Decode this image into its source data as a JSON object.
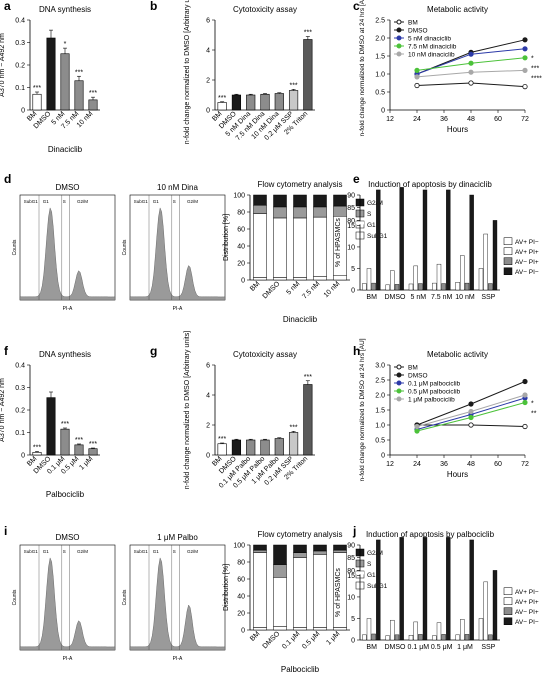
{
  "figure": {
    "colors": {
      "black": "#1a1a1a",
      "dgray": "#5a5a5a",
      "mgray": "#8c8c8c",
      "lgray": "#c8c8c8",
      "white": "#ffffff",
      "blue": "#2c3aa8",
      "green": "#4cc23a",
      "silver": "#a8a8a8"
    }
  },
  "chart_data": [
    {
      "panel": "a",
      "type": "bar",
      "title": "DNA synthesis",
      "ylabel": "A370 nm − A492 nm",
      "xlabel": "Dinaciclib",
      "categories": [
        "BM",
        "DMSO",
        "5 nM",
        "7.5 nM",
        "10 nM"
      ],
      "values": [
        0.07,
        0.32,
        0.25,
        0.13,
        0.045
      ],
      "errors": [
        0.01,
        0.035,
        0.025,
        0.02,
        0.012
      ],
      "annotations": [
        "***",
        "",
        "*",
        "***",
        "***"
      ],
      "ylim": [
        0,
        0.4
      ],
      "yticks": [
        "0",
        "0.1",
        "0.2",
        "0.3",
        "0.4"
      ],
      "colors": [
        "white",
        "black",
        "mgray",
        "mgray",
        "mgray"
      ]
    },
    {
      "panel": "b",
      "type": "bar",
      "title": "Cytotoxicity assay",
      "ylabel": "n-fold change normalized to DMSO [Arbitrary units]",
      "categories": [
        "BM",
        "DMSO",
        "5 nM Dina",
        "7.5 nM Dina",
        "10 nM Dina",
        "0.2 μM SSP",
        "2% Triton"
      ],
      "values": [
        0.5,
        1.0,
        1.0,
        1.05,
        1.1,
        1.3,
        4.7
      ],
      "errors": [
        0.05,
        0.05,
        0.05,
        0.05,
        0.05,
        0.08,
        0.2
      ],
      "annotations": [
        "***",
        "",
        "",
        "",
        "",
        "***",
        "***"
      ],
      "ylim": [
        0,
        6
      ],
      "yticks": [
        "0",
        "2",
        "4",
        "6"
      ],
      "colors": [
        "white",
        "black",
        "mgray",
        "mgray",
        "mgray",
        "lgray",
        "dgray"
      ]
    },
    {
      "panel": "c",
      "type": "line",
      "title": "Metabolic activity",
      "xlabel": "Hours",
      "ylabel": "n-fold change normalized to DMSO at 24 hrs [AU]",
      "x": [
        24,
        48,
        72
      ],
      "xlim": [
        12,
        72
      ],
      "xticks": [
        "12",
        "24",
        "36",
        "48",
        "60",
        "72"
      ],
      "ylim": [
        0,
        2.5
      ],
      "yticks": [
        "0",
        "0.5",
        "1.0",
        "1.5",
        "2.0",
        "2.5"
      ],
      "series": [
        {
          "name": "BM",
          "values": [
            0.68,
            0.75,
            0.65
          ],
          "color": "black",
          "marker": "open"
        },
        {
          "name": "DMSO",
          "values": [
            1.0,
            1.6,
            1.95
          ],
          "color": "black",
          "marker": "filled"
        },
        {
          "name": "5 nM dinaciclib",
          "values": [
            1.0,
            1.55,
            1.7
          ],
          "color": "blue",
          "marker": "filled"
        },
        {
          "name": "7.5 nM dinaciclib",
          "values": [
            1.1,
            1.3,
            1.45
          ],
          "color": "green",
          "marker": "filled"
        },
        {
          "name": "10 nM dinaciclib",
          "values": [
            0.92,
            1.05,
            1.1
          ],
          "color": "silver",
          "marker": "filled"
        }
      ],
      "annotations": [
        "*",
        "***",
        "****"
      ]
    },
    {
      "panel": "d",
      "type": "bar",
      "title": "Flow cytometry analysis",
      "ylabel": "Distribution [%]",
      "xlabel": "Dinaciclib",
      "categories": [
        "BM",
        "DMSO",
        "5 nM",
        "7.5 nM",
        "10 nM"
      ],
      "series": [
        {
          "name": "SubG1",
          "values": [
            3,
            3,
            3,
            4,
            5
          ]
        },
        {
          "name": "G1",
          "values": [
            75,
            70,
            70,
            70,
            70
          ]
        },
        {
          "name": "S",
          "values": [
            10,
            13,
            13,
            12,
            12
          ]
        },
        {
          "name": "G2/M",
          "values": [
            12,
            14,
            14,
            14,
            13
          ]
        }
      ],
      "ylim": [
        0,
        100
      ],
      "yticks": [
        "0",
        "20",
        "40",
        "60",
        "80",
        "100"
      ]
    },
    {
      "panel": "e",
      "type": "bar",
      "title": "Induction of apoptosis by dinaciclib",
      "ylabel": "% of HPASMCs",
      "categories": [
        "BM",
        "DMSO",
        "5 nM",
        "7.5 nM",
        "10 nM",
        "SSP"
      ],
      "series": [
        {
          "name": "AV- PI-",
          "values": [
            1.5,
            1.2,
            1.4,
            1.6,
            1.8,
            5.0
          ]
        },
        {
          "name": "AV+ PI-",
          "values": [
            5.0,
            4.5,
            5.6,
            6.0,
            8.0,
            13.0
          ]
        },
        {
          "name": "AV- PI+",
          "values": [
            1.6,
            1.3,
            1.5,
            1.5,
            1.6,
            1.5
          ]
        },
        {
          "name": "AV+ PI+",
          "values": [
            92,
            93,
            92,
            92,
            90,
            80
          ]
        }
      ],
      "ylim": [
        0,
        90
      ],
      "yticks": [
        "0",
        "5",
        "10",
        "15",
        "80",
        "85",
        "90"
      ],
      "legend": [
        "AV+ PI−",
        "AV+ PI+",
        "AV− PI+",
        "AV− PI−"
      ]
    },
    {
      "panel": "f",
      "type": "bar",
      "title": "DNA synthesis",
      "ylabel": "A370 nm − A492 nm",
      "xlabel": "Palbociclib",
      "categories": [
        "BM",
        "DMSO",
        "0.1 μM",
        "0.5 μM",
        "1 μM"
      ],
      "values": [
        0.012,
        0.255,
        0.115,
        0.045,
        0.028
      ],
      "errors": [
        0.004,
        0.025,
        0.005,
        0.004,
        0.003
      ],
      "annotations": [
        "***",
        "",
        "***",
        "***",
        "***"
      ],
      "ylim": [
        0,
        0.4
      ],
      "yticks": [
        "0",
        "0.1",
        "0.2",
        "0.3",
        "0.4"
      ],
      "colors": [
        "white",
        "black",
        "mgray",
        "mgray",
        "mgray"
      ]
    },
    {
      "panel": "g",
      "type": "bar",
      "title": "Cytotoxicity assay",
      "ylabel": "n-fold change normalized to DMSO [Arbitrary units]",
      "categories": [
        "BM",
        "DMSO",
        "0.1 μM Palbo",
        "0.5 μM Palbo",
        "1 μM Palbo",
        "0.2 μM SSP",
        "2% Triton"
      ],
      "values": [
        0.75,
        1.0,
        1.0,
        1.0,
        1.1,
        1.5,
        4.7
      ],
      "errors": [
        0.05,
        0.05,
        0.05,
        0.05,
        0.05,
        0.08,
        0.25
      ],
      "annotations": [
        "***",
        "",
        "",
        "",
        "",
        "***",
        "***"
      ],
      "ylim": [
        0,
        6
      ],
      "yticks": [
        "0",
        "2",
        "4",
        "6"
      ],
      "colors": [
        "white",
        "black",
        "mgray",
        "mgray",
        "mgray",
        "lgray",
        "dgray"
      ]
    },
    {
      "panel": "h",
      "type": "line",
      "title": "Metabolic activity",
      "xlabel": "Hours",
      "ylabel": "n-fold change normalized to DMSO at 24 hrs [AU]",
      "x": [
        24,
        48,
        72
      ],
      "xlim": [
        12,
        72
      ],
      "xticks": [
        "12",
        "24",
        "36",
        "48",
        "60",
        "72"
      ],
      "ylim": [
        0,
        3.0
      ],
      "yticks": [
        "0",
        "0.5",
        "1.0",
        "1.5",
        "2.0",
        "2.5",
        "3.0"
      ],
      "series": [
        {
          "name": "BM",
          "values": [
            1.0,
            1.0,
            0.95
          ],
          "color": "black",
          "marker": "open"
        },
        {
          "name": "DMSO",
          "values": [
            1.0,
            1.7,
            2.45
          ],
          "color": "black",
          "marker": "filled"
        },
        {
          "name": "0.1 μM palbociclib",
          "values": [
            0.85,
            1.35,
            1.9
          ],
          "color": "blue",
          "marker": "filled"
        },
        {
          "name": "0.5 μM palbociclib",
          "values": [
            0.8,
            1.25,
            1.75
          ],
          "color": "green",
          "marker": "filled"
        },
        {
          "name": "1 μM palbociclib",
          "values": [
            0.95,
            1.45,
            2.0
          ],
          "color": "silver",
          "marker": "filled"
        }
      ],
      "annotations": [
        "*",
        "**"
      ]
    },
    {
      "panel": "i",
      "type": "bar",
      "title": "Flow cytometry analysis",
      "ylabel": "Distribution [%]",
      "xlabel": "Palbociclib",
      "categories": [
        "BM",
        "DMSO",
        "0.1 μM",
        "0.5 μM",
        "1 μM"
      ],
      "series": [
        {
          "name": "SubG1",
          "values": [
            3,
            4,
            3,
            3,
            3
          ]
        },
        {
          "name": "G1",
          "values": [
            88,
            58,
            82,
            86,
            88
          ]
        },
        {
          "name": "S",
          "values": [
            3,
            15,
            6,
            4,
            3
          ]
        },
        {
          "name": "G2/M",
          "values": [
            6,
            23,
            9,
            7,
            6
          ]
        }
      ],
      "ylim": [
        0,
        100
      ],
      "yticks": [
        "0",
        "20",
        "40",
        "60",
        "80",
        "100"
      ]
    },
    {
      "panel": "j",
      "type": "bar",
      "title": "Induction of apoptosis by palbociclib",
      "ylabel": "% of HPASMCs",
      "categories": [
        "BM",
        "DMSO",
        "0.1 μM",
        "0.5 μM",
        "1 μM",
        "SSP"
      ],
      "series": [
        {
          "name": "AV- PI-",
          "values": [
            1.2,
            1.0,
            1.1,
            1.0,
            1.2,
            5.0
          ]
        },
        {
          "name": "AV+ PI-",
          "values": [
            5.0,
            4.6,
            4.2,
            4.0,
            4.8,
            13.5
          ]
        },
        {
          "name": "AV- PI+",
          "values": [
            1.4,
            1.2,
            1.3,
            1.3,
            1.3,
            1.2
          ]
        },
        {
          "name": "AV+ PI+",
          "values": [
            92,
            93,
            93,
            93,
            92,
            80
          ]
        }
      ],
      "ylim": [
        0,
        90
      ],
      "yticks": [
        "0",
        "5",
        "10",
        "15",
        "80",
        "85",
        "90"
      ],
      "legend": [
        "AV+ PI−",
        "AV+ PI+",
        "AV− PI+",
        "AV− PI−"
      ]
    }
  ],
  "histograms": {
    "top_left_title": "DMSO",
    "top_right_title": "10 nM Dina",
    "bottom_left_title": "DMSO",
    "bottom_right_title": "1 μM Palbo",
    "xlabel": "PI-A",
    "ylabel": "Counts",
    "gates": [
      "SubG1",
      "G1",
      "S",
      "G2/M"
    ]
  },
  "panel_letters": [
    "a",
    "b",
    "c",
    "d",
    "e",
    "f",
    "g",
    "h",
    "i",
    "j"
  ]
}
